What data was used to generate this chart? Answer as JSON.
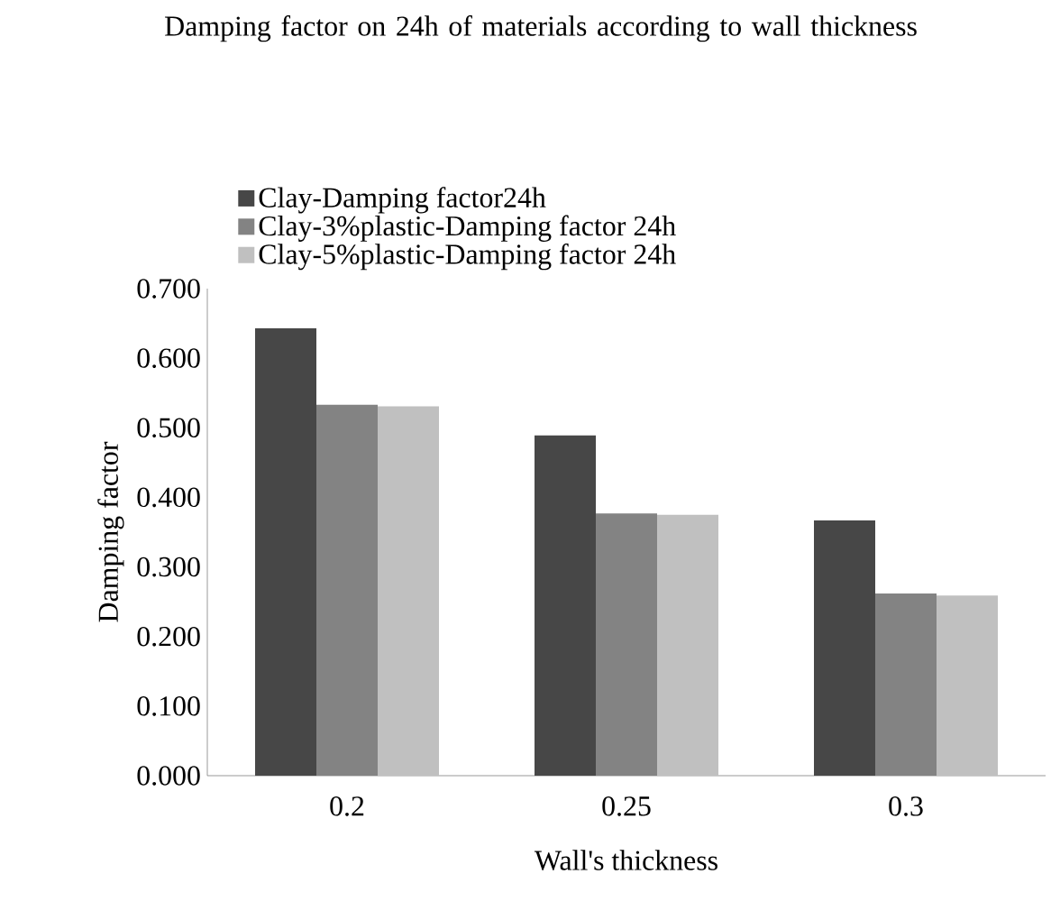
{
  "chart_data": {
    "type": "bar",
    "title": "Damping factor on 24h of materials according to wall thickness",
    "xlabel": "Wall's thickness",
    "ylabel": "Damping factor",
    "categories": [
      "0.2",
      "0.25",
      "0.3"
    ],
    "series": [
      {
        "name": "Clay-Damping factor24h",
        "color": "#474747",
        "values": [
          0.643,
          0.489,
          0.367
        ]
      },
      {
        "name": "Clay-3%plastic-Damping factor 24h",
        "color": "#838383",
        "values": [
          0.533,
          0.377,
          0.262
        ]
      },
      {
        "name": "Clay-5%plastic-Damping factor 24h",
        "color": "#c0c0c0",
        "values": [
          0.531,
          0.375,
          0.259
        ]
      }
    ],
    "ylim": [
      0,
      0.7
    ],
    "yticks": [
      {
        "value": 0,
        "label": "0.000"
      },
      {
        "value": 0.1,
        "label": "0.100"
      },
      {
        "value": 0.2,
        "label": "0.200"
      },
      {
        "value": 0.3,
        "label": "0.300"
      },
      {
        "value": 0.4,
        "label": "0.400"
      },
      {
        "value": 0.5,
        "label": "0.500"
      },
      {
        "value": 0.6,
        "label": "0.600"
      },
      {
        "value": 0.7,
        "label": "0.700"
      }
    ],
    "grid": false,
    "legend": "top left"
  }
}
